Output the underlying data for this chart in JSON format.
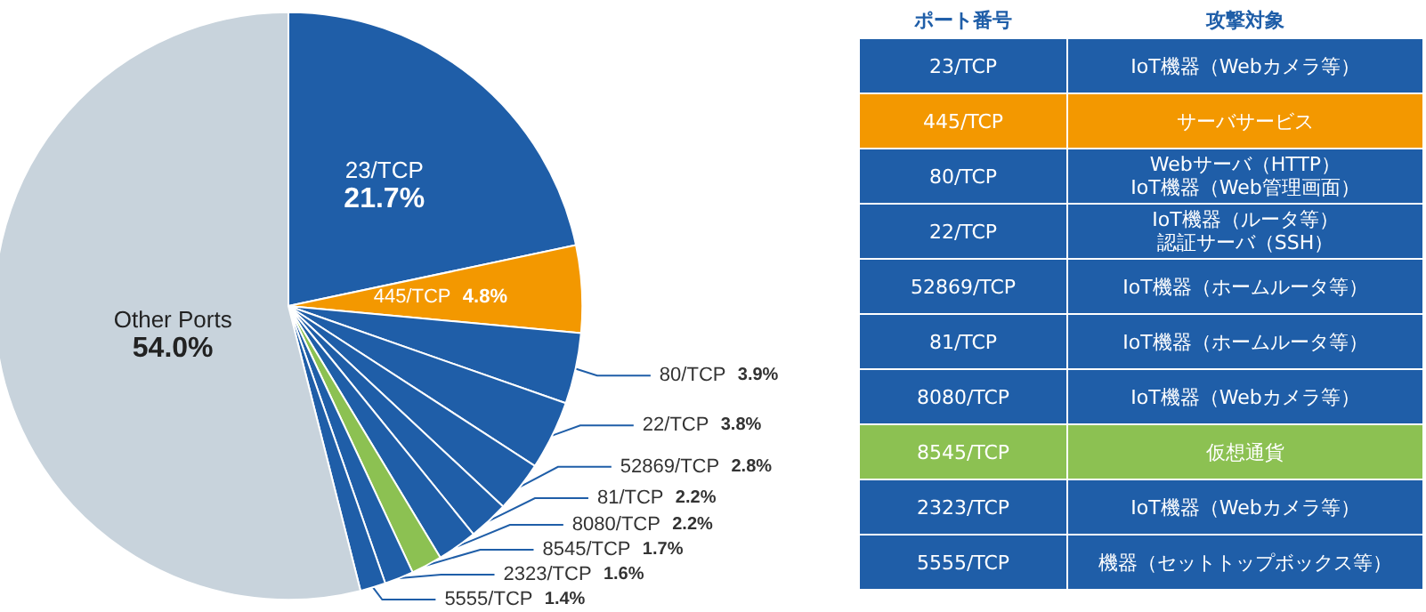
{
  "chart_data": {
    "type": "pie",
    "categories": [
      "23/TCP",
      "445/TCP",
      "80/TCP",
      "22/TCP",
      "52869/TCP",
      "81/TCP",
      "8080/TCP",
      "8545/TCP",
      "2323/TCP",
      "5555/TCP",
      "Other Ports"
    ],
    "values": [
      21.7,
      4.8,
      3.9,
      3.8,
      2.8,
      2.2,
      2.2,
      1.7,
      1.6,
      1.4,
      54.0
    ],
    "colors": [
      "#1f5ea8",
      "#f39800",
      "#1f5ea8",
      "#1f5ea8",
      "#1f5ea8",
      "#1f5ea8",
      "#1f5ea8",
      "#8cc152",
      "#1f5ea8",
      "#1f5ea8",
      "#c8d3dc"
    ],
    "value_labels": [
      "21.7%",
      "4.8%",
      "3.9%",
      "3.8%",
      "2.8%",
      "2.2%",
      "2.2%",
      "1.7%",
      "1.6%",
      "1.4%",
      "54.0%"
    ],
    "legend": false,
    "annotations": [
      "ポート番号",
      "攻撃対象",
      "IoT機器（Webカメラ等）",
      "サーバサービス",
      "Webサーバ（HTTP）IoT機器（Web管理画面）",
      "IoT機器（ルータ等）認証サーバ（SSH）",
      "IoT機器（ホームルータ等）",
      "IoT機器（ホームルータ等）",
      "IoT機器（Webカメラ等）",
      "仮想通貨",
      "IoT機器（Webカメラ等）",
      "機器（セットトップボックス等）"
    ]
  }
}
